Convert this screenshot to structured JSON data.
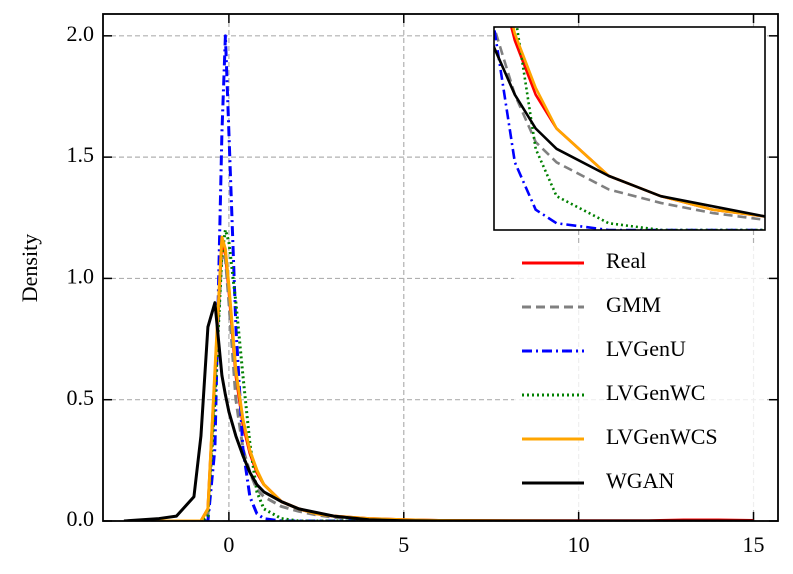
{
  "chart_data": {
    "type": "line",
    "y_label": "Density",
    "xlim": [
      -3.6,
      15.7
    ],
    "ylim": [
      0,
      2.09
    ],
    "xticks": [
      0,
      5,
      10,
      15
    ],
    "yticks": [
      {
        "value": 0,
        "label": "0.0"
      },
      0.5,
      {
        "value": 1,
        "label": "1.0"
      },
      1.5,
      {
        "value": 2,
        "label": "2.0"
      }
    ],
    "grid": true,
    "legend": "right",
    "inset": {
      "xlim": [
        0.4,
        3.0
      ],
      "ylim": [
        0,
        0.3
      ]
    },
    "x": [
      -3,
      -2,
      -1.5,
      -1,
      -0.8,
      -0.6,
      -0.4,
      -0.2,
      -0.1,
      0,
      0.2,
      0.4,
      0.6,
      0.8,
      1,
      1.5,
      2,
      2.5,
      3,
      4,
      5,
      6,
      8,
      10,
      12,
      13,
      14,
      15
    ],
    "series": [
      {
        "name": "Real",
        "color": "#ff0000",
        "linestyle": "solid",
        "values": [
          0,
          0,
          0,
          0,
          0,
          0.05,
          0.6,
          1.15,
          1.1,
          0.95,
          0.6,
          0.4,
          0.28,
          0.2,
          0.15,
          0.08,
          0.05,
          0.03,
          0.02,
          0.01,
          0.005,
          0.002,
          0.001,
          0.001,
          0.001,
          0.004,
          0.004,
          0.002
        ]
      },
      {
        "name": "GMM",
        "color": "#808080",
        "linestyle": "dashed",
        "values": [
          0,
          0,
          0,
          0,
          0,
          0.02,
          0.55,
          1.1,
          1.08,
          0.9,
          0.5,
          0.3,
          0.2,
          0.13,
          0.1,
          0.06,
          0.04,
          0.025,
          0.015,
          0.005,
          0.002,
          0,
          0,
          0,
          0,
          0,
          0,
          0
        ]
      },
      {
        "name": "LVGenU",
        "color": "#0000ff",
        "linestyle": "dashdot",
        "values": [
          0,
          0,
          0,
          0,
          0,
          0,
          0.3,
          1.6,
          2.0,
          1.6,
          0.8,
          0.3,
          0.1,
          0.03,
          0.01,
          0,
          0,
          0,
          0,
          0,
          0,
          0,
          0,
          0,
          0,
          0,
          0,
          0
        ]
      },
      {
        "name": "LVGenWC",
        "color": "#008000",
        "linestyle": "dotted",
        "values": [
          0,
          0,
          0,
          0,
          0,
          0.02,
          0.5,
          1.1,
          1.2,
          1.15,
          0.9,
          0.6,
          0.32,
          0.12,
          0.05,
          0.01,
          0,
          0,
          0,
          0,
          0,
          0,
          0,
          0,
          0,
          0,
          0,
          0
        ]
      },
      {
        "name": "LVGenWCS",
        "color": "#ffa500",
        "linestyle": "solid",
        "values": [
          0,
          0,
          0,
          0,
          0,
          0.05,
          0.62,
          1.17,
          1.12,
          0.97,
          0.62,
          0.42,
          0.29,
          0.21,
          0.15,
          0.08,
          0.05,
          0.03,
          0.02,
          0.01,
          0.005,
          0.002,
          0.001,
          0,
          0,
          0,
          0,
          0
        ]
      },
      {
        "name": "WGAN",
        "color": "#000000",
        "linestyle": "solid",
        "values": [
          0,
          0.01,
          0.02,
          0.1,
          0.35,
          0.8,
          0.9,
          0.6,
          0.52,
          0.45,
          0.35,
          0.27,
          0.2,
          0.15,
          0.12,
          0.08,
          0.05,
          0.035,
          0.02,
          0.005,
          0.001,
          0,
          0,
          0,
          0,
          0,
          0,
          0
        ]
      }
    ]
  }
}
